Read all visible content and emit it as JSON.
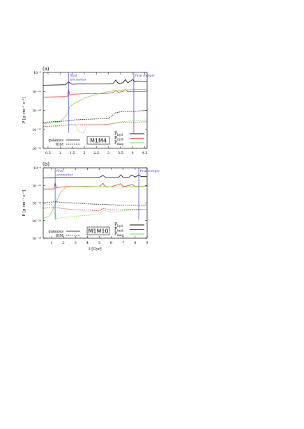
{
  "figure": {
    "ylabel": "P [g cm⁻¹ s⁻²]",
    "xlabel": "t [Gyr]",
    "colors": {
      "hyd": "#000000",
      "turb": "#e8232b",
      "mag": "#7ad93a",
      "event": "#3a3ad9"
    },
    "legend_left": [
      {
        "label": "galaxies",
        "dash": "solid"
      },
      {
        "label": "IGM",
        "dash": "dashed"
      }
    ]
  },
  "chart_data": [
    {
      "panel": "(a)",
      "type": "line",
      "run": "M1M4",
      "xlim": [
        0.3,
        4.6
      ],
      "ylim": [
        -24,
        -8
      ],
      "ylog": true,
      "yticks": [
        "10⁻⁸",
        "10⁻¹²",
        "10⁻¹⁶",
        "10⁻²⁰",
        "10⁻²⁴"
      ],
      "xticks": [
        "0.5",
        "1",
        "1.5",
        "2",
        "2.5",
        "3",
        "3.5",
        "4",
        "4.5"
      ],
      "xtick_values": [
        0.5,
        1,
        1.5,
        2,
        2.5,
        3,
        3.5,
        4,
        4.5
      ],
      "events": [
        {
          "label": "final\nencounter",
          "x": 1.35
        },
        {
          "label": "final merger",
          "x": 4.05
        }
      ],
      "legend": [
        "P_hyd",
        "P_turb",
        "P_mag"
      ],
      "series": [
        {
          "name": "P_hyd",
          "component": "galaxies",
          "x": [
            0.3,
            1.2,
            1.35,
            1.5,
            2,
            2.5,
            3,
            3.2,
            3.3,
            3.4,
            3.6,
            3.7,
            3.8,
            4,
            4.1,
            4.2,
            4.6
          ],
          "y": [
            -10.7,
            -10.6,
            -10.0,
            -10.5,
            -10.4,
            -10.4,
            -10.4,
            -10.3,
            -9.6,
            -10.3,
            -10.2,
            -9.5,
            -10.2,
            -9.5,
            -10.0,
            -9.8,
            -10.0
          ]
        },
        {
          "name": "P_turb",
          "component": "galaxies",
          "x": [
            0.3,
            1.3,
            1.35,
            1.4,
            1.5,
            2,
            2.5,
            3,
            3.2,
            3.3,
            3.4,
            3.6,
            3.7,
            3.8,
            4,
            4.6
          ],
          "y": [
            -13.2,
            -13.1,
            -11.6,
            -12.8,
            -12.6,
            -12.5,
            -12.5,
            -12.4,
            -12.2,
            -11.7,
            -12.2,
            -12.0,
            -11.6,
            -12.1,
            -12.0,
            -12.0
          ]
        },
        {
          "name": "P_mag",
          "component": "galaxies",
          "x": [
            0.3,
            1.0,
            1.3,
            1.4,
            1.6,
            1.8,
            2,
            2.5,
            3,
            3.2,
            3.4,
            3.6,
            3.8,
            4,
            4.6
          ],
          "y": [
            -18.8,
            -18.4,
            -16.8,
            -15.2,
            -14.5,
            -14.0,
            -13.4,
            -12.6,
            -12.0,
            -11.9,
            -11.8,
            -11.7,
            -11.7,
            -11.6,
            -11.6
          ]
        },
        {
          "name": "P_hyd",
          "component": "IGM",
          "x": [
            0.3,
            1.0,
            1.4,
            1.6,
            2,
            2.5,
            3,
            3.3,
            3.5,
            4,
            4.6
          ],
          "y": [
            -18.5,
            -18.3,
            -18.2,
            -18.0,
            -17.9,
            -17.8,
            -17.7,
            -16.5,
            -16.3,
            -16.2,
            -16.0
          ]
        },
        {
          "name": "P_turb",
          "component": "IGM",
          "x": [
            0.3,
            1.0,
            1.4,
            1.8,
            2,
            2.5,
            3,
            3.3,
            3.5,
            4,
            4.6
          ],
          "y": [
            -19.4,
            -19.2,
            -19.1,
            -19.0,
            -19.0,
            -19.0,
            -18.9,
            -18.7,
            -18.5,
            -18.5,
            -18.4
          ]
        },
        {
          "name": "P_mag",
          "component": "IGM",
          "x": [
            0.3,
            0.8,
            1.2,
            1.4,
            1.6,
            1.8,
            1.9,
            2.0,
            2.1,
            2.2,
            2.5,
            3,
            3.3,
            3.5,
            4,
            4.6
          ],
          "y": [
            -19.5,
            -19.4,
            -19.2,
            -19.0,
            -18.8,
            -20.6,
            -20.7,
            -20.7,
            -19.2,
            -19.0,
            -19.0,
            -19.0,
            -18.6,
            -18.4,
            -18.2,
            -18.0
          ]
        }
      ]
    },
    {
      "panel": "(b)",
      "type": "line",
      "run": "M1M10",
      "xlim": [
        0.3,
        9.0
      ],
      "ylim": [
        -24,
        -8
      ],
      "ylog": true,
      "yticks": [
        "10⁻⁸",
        "10⁻¹²",
        "10⁻¹⁶",
        "10⁻²⁰",
        "10⁻²⁴"
      ],
      "xticks": [
        "1",
        "2",
        "3",
        "4",
        "5",
        "6",
        "7",
        "8",
        "9"
      ],
      "xtick_values": [
        1,
        2,
        3,
        4,
        5,
        6,
        7,
        8,
        9
      ],
      "events": [
        {
          "label": "final\nencounter",
          "x": 1.3
        },
        {
          "label": "final merger",
          "x": 8.3
        }
      ],
      "legend": [
        "P_hyd",
        "P_turb",
        "P_mag"
      ],
      "series": [
        {
          "name": "P_hyd",
          "component": "galaxies",
          "x": [
            0.3,
            1.3,
            2,
            3,
            4,
            5,
            5.3,
            5.5,
            6,
            6.6,
            6.8,
            7,
            7.5,
            7.7,
            8,
            8.3,
            8.5,
            9
          ],
          "y": [
            -10.3,
            -10.2,
            -10.2,
            -10.2,
            -10.2,
            -10.2,
            -9.7,
            -10.2,
            -10.2,
            -10.2,
            -9.6,
            -10.2,
            -10.1,
            -9.6,
            -10.1,
            -9.6,
            -10.0,
            -10.0
          ]
        },
        {
          "name": "P_turb",
          "component": "galaxies",
          "x": [
            0.3,
            1.2,
            1.3,
            1.4,
            2,
            3,
            4,
            5,
            5.3,
            5.5,
            6,
            6.8,
            7,
            7.8,
            8,
            8.5,
            9
          ],
          "y": [
            -12.8,
            -12.8,
            -11.4,
            -12.5,
            -12.3,
            -12.2,
            -12.3,
            -12.3,
            -11.5,
            -12.3,
            -12.3,
            -11.6,
            -12.3,
            -11.8,
            -12.3,
            -12.2,
            -12.2
          ]
        },
        {
          "name": "P_mag",
          "component": "galaxies",
          "x": [
            0.3,
            0.8,
            1.2,
            1.5,
            1.8,
            2.2,
            3,
            4,
            5,
            5.5,
            6,
            7,
            8,
            8.5,
            9
          ],
          "y": [
            -19.5,
            -19.0,
            -17.0,
            -15.0,
            -13.4,
            -12.4,
            -12.2,
            -12.2,
            -12.3,
            -12.2,
            -12.3,
            -12.4,
            -12.2,
            -12.2,
            -12.1
          ]
        },
        {
          "name": "P_hyd",
          "component": "IGM",
          "x": [
            0.3,
            1.3,
            2,
            3,
            4,
            5,
            6,
            7,
            8,
            9
          ],
          "y": [
            -16.0,
            -15.7,
            -15.9,
            -16.0,
            -16.2,
            -16.3,
            -16.4,
            -16.5,
            -16.5,
            -16.5
          ]
        },
        {
          "name": "P_turb",
          "component": "IGM",
          "x": [
            0.3,
            1.3,
            2,
            3,
            4,
            5,
            5.3,
            6,
            7,
            8,
            9
          ],
          "y": [
            -17.2,
            -17.0,
            -17.3,
            -17.5,
            -17.6,
            -17.8,
            -17.2,
            -17.6,
            -17.5,
            -17.4,
            -17.4
          ]
        },
        {
          "name": "P_mag",
          "component": "IGM",
          "x": [
            0.3,
            1.0,
            1.4,
            2,
            3,
            4,
            5,
            5.3,
            6,
            7,
            8,
            9
          ],
          "y": [
            -16.5,
            -16.3,
            -19.5,
            -19.3,
            -19.0,
            -18.8,
            -18.6,
            -17.6,
            -18.1,
            -17.8,
            -17.6,
            -17.5
          ]
        }
      ]
    }
  ]
}
